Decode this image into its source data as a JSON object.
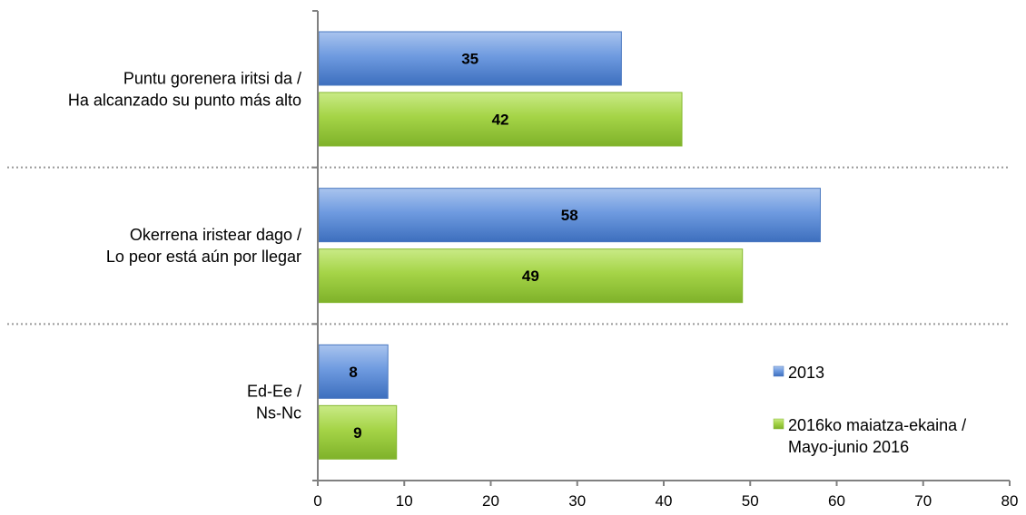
{
  "chart_data": {
    "type": "bar",
    "orientation": "horizontal",
    "categories": [
      [
        "Puntu gorenera iritsi da /",
        "Ha alcanzado su punto más alto"
      ],
      [
        "Okerrena iristear dago /",
        "Lo peor está aún por llegar"
      ],
      [
        "Ed-Ee /",
        "Ns-Nc"
      ]
    ],
    "series": [
      {
        "name": "2013",
        "values": [
          35,
          58,
          8
        ],
        "color": "#5b8bd0"
      },
      {
        "name": [
          "2016ko maiatza-ekaina /",
          "Mayo-junio 2016"
        ],
        "values": [
          42,
          49,
          9
        ],
        "color": "#9bcc3a"
      }
    ],
    "xlim": [
      0,
      80
    ],
    "xticks": [
      0,
      10,
      20,
      30,
      40,
      50,
      60,
      70,
      80
    ],
    "title": "",
    "xlabel": "",
    "ylabel": "",
    "data_labels": true,
    "legend_position": "inside-right",
    "grid": false,
    "category_separators": "dotted"
  }
}
